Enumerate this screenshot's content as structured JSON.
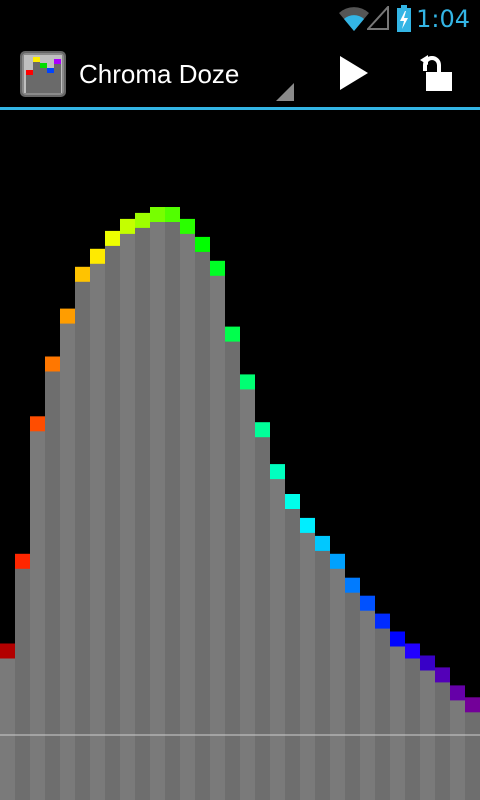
{
  "status_bar": {
    "time": "1:04",
    "accent_color": "#33b5e5",
    "icons": [
      "wifi-icon",
      "signal-icon",
      "battery-charging-icon"
    ]
  },
  "action_bar": {
    "title": "Chroma Doze",
    "play_icon": "play-icon",
    "lock_icon": "unlock-icon",
    "divider_color": "#33b5e5"
  },
  "chart_data": {
    "type": "bar",
    "bar_color": "#777777",
    "baseline_level": 0.905,
    "values": [
      0.25,
      0.4,
      0.63,
      0.73,
      0.81,
      0.88,
      0.91,
      0.94,
      0.96,
      0.97,
      0.98,
      0.98,
      0.96,
      0.93,
      0.89,
      0.78,
      0.7,
      0.62,
      0.55,
      0.5,
      0.46,
      0.43,
      0.4,
      0.36,
      0.33,
      0.3,
      0.27,
      0.25,
      0.23,
      0.21,
      0.18,
      0.16
    ]
  }
}
